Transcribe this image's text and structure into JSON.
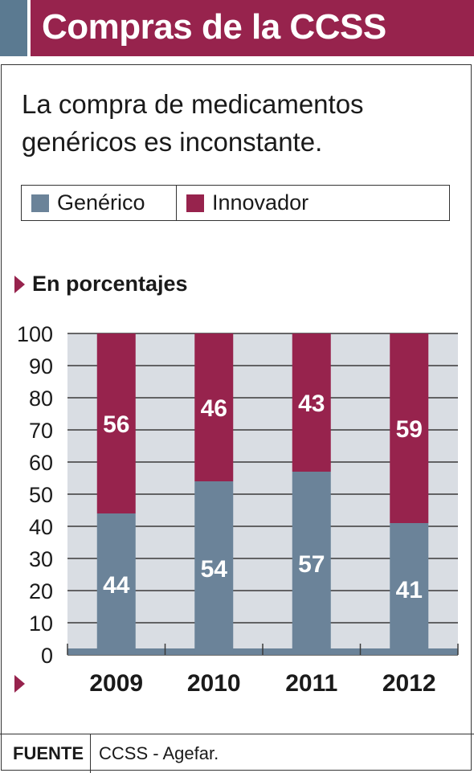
{
  "title": "Compras de la CCSS",
  "subtitle": "La compra de medicamentos genéricos es inconstante.",
  "unit_note": "En porcentajes",
  "legend": [
    {
      "label": "Genérico",
      "color": "#6b8399"
    },
    {
      "label": "Innovador",
      "color": "#97234d"
    }
  ],
  "footer": {
    "label": "FUENTE",
    "text": "CCSS - Agefar."
  },
  "colors": {
    "accent": "#5b7a91",
    "brand": "#97234d",
    "plot_bg": "#d9dde3"
  },
  "chart_data": {
    "type": "bar",
    "stacked": true,
    "categories": [
      "2009",
      "2010",
      "2011",
      "2012"
    ],
    "series": [
      {
        "name": "Genérico",
        "values": [
          44,
          54,
          57,
          41
        ],
        "color": "#6b8399"
      },
      {
        "name": "Innovador",
        "values": [
          56,
          46,
          43,
          59
        ],
        "color": "#97234d"
      }
    ],
    "yticks": [
      0,
      10,
      20,
      30,
      40,
      50,
      60,
      70,
      80,
      90,
      100
    ],
    "ylim": [
      0,
      100
    ],
    "grid": true,
    "legend_position": "top"
  }
}
